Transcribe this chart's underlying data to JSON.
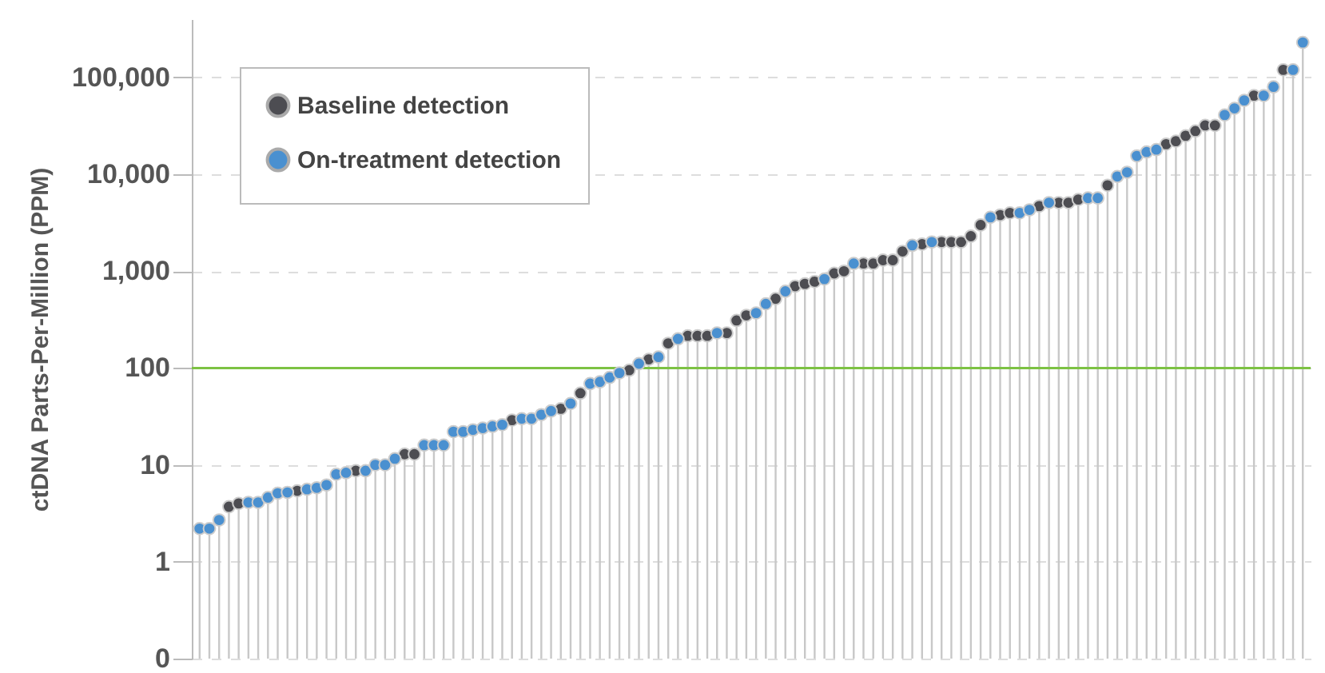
{
  "chart_data": {
    "type": "lollipop",
    "ylabel": "ctDNA Parts-Per-Million (PPM)",
    "categories": [
      null,
      null,
      null,
      null,
      null,
      null,
      null,
      null,
      null,
      null,
      null,
      null,
      null,
      null,
      null,
      null,
      null,
      null,
      null,
      null,
      null,
      null,
      null,
      null,
      null,
      null,
      null,
      null,
      null,
      null,
      null,
      null,
      null,
      null,
      null,
      null,
      null,
      null,
      null,
      null,
      null,
      null,
      null,
      null,
      null,
      null,
      null,
      null,
      null,
      null,
      null,
      null,
      null,
      null,
      null,
      null,
      null,
      null,
      null,
      null,
      null,
      null,
      null,
      null,
      null,
      null,
      null,
      null,
      null,
      null,
      null,
      null,
      null,
      null,
      null,
      null,
      null,
      null,
      null,
      null,
      null,
      null,
      null,
      null,
      null,
      null,
      null,
      null,
      null,
      null,
      null,
      null,
      null,
      null,
      null,
      null,
      null,
      null,
      null,
      null,
      null,
      null,
      null,
      null,
      null,
      null,
      null,
      null,
      null,
      null,
      null,
      null,
      null,
      null
    ],
    "series": [
      {
        "name": "Baseline detection",
        "color": "#4d4d52",
        "values": [
          null,
          null,
          null,
          3.7,
          4.0,
          null,
          null,
          null,
          null,
          null,
          5.4,
          null,
          null,
          null,
          null,
          null,
          8.7,
          null,
          null,
          null,
          null,
          12.9,
          12.9,
          null,
          null,
          null,
          null,
          null,
          null,
          null,
          null,
          null,
          29,
          null,
          null,
          null,
          null,
          38,
          null,
          55,
          null,
          null,
          null,
          null,
          95,
          null,
          123,
          null,
          180,
          null,
          215,
          215,
          215,
          null,
          230,
          310,
          350,
          null,
          null,
          520,
          null,
          700,
          740,
          780,
          null,
          950,
          1000,
          null,
          1200,
          1200,
          1300,
          1300,
          1600,
          null,
          1900,
          null,
          2000,
          2000,
          2000,
          2300,
          3000,
          null,
          3800,
          4000,
          null,
          null,
          4700,
          null,
          5100,
          5100,
          5500,
          null,
          null,
          7700,
          null,
          null,
          null,
          null,
          null,
          20500,
          22000,
          25000,
          28000,
          32000,
          32000,
          null,
          null,
          null,
          65000,
          null,
          null,
          120000,
          null,
          null
        ]
      },
      {
        "name": "On-treatment detection",
        "color": "#4a90d0",
        "values": [
          2.2,
          2.2,
          2.7,
          null,
          null,
          4.1,
          4.1,
          4.6,
          5.1,
          5.2,
          null,
          5.6,
          5.8,
          6.2,
          8.0,
          8.3,
          null,
          8.7,
          10,
          10,
          11.6,
          null,
          null,
          16,
          16,
          16,
          22,
          22,
          23,
          24,
          25,
          26,
          null,
          30,
          30,
          33,
          36,
          null,
          43,
          null,
          69,
          72,
          80,
          89,
          null,
          111,
          null,
          130,
          null,
          200,
          null,
          null,
          null,
          230,
          null,
          null,
          null,
          370,
          460,
          null,
          620,
          null,
          null,
          null,
          830,
          null,
          null,
          1200,
          null,
          null,
          null,
          null,
          null,
          1850,
          null,
          2000,
          null,
          null,
          null,
          null,
          null,
          3600,
          null,
          null,
          4000,
          4300,
          null,
          5100,
          null,
          null,
          null,
          5700,
          5700,
          null,
          9500,
          10500,
          15500,
          17000,
          18000,
          null,
          null,
          null,
          null,
          null,
          null,
          41000,
          48000,
          58000,
          null,
          65000,
          80000,
          null,
          120000,
          230000
        ]
      }
    ],
    "ylim": [
      0.1,
      400000
    ],
    "yticks": [
      {
        "value": 0.1,
        "label": "0"
      },
      1,
      10,
      100,
      {
        "value": 1000,
        "label": "1,000"
      },
      {
        "value": 10000,
        "label": "10,000"
      },
      {
        "value": 100000,
        "label": "100,000"
      }
    ],
    "log": true,
    "grid": "y",
    "legend": "top left",
    "marker": "circle",
    "tick_labels": "y",
    "ref_lines": [
      {
        "axis": "y",
        "value": 100,
        "color": "#7dc243"
      }
    ]
  }
}
